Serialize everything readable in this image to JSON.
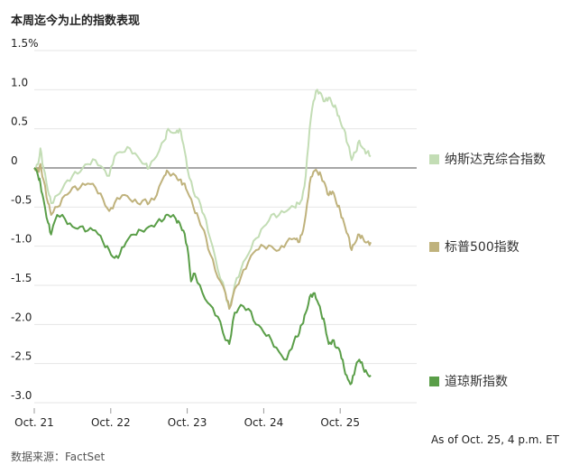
{
  "title": "本周迄今为止的指数表现",
  "source": "数据来源：FactSet",
  "note": "As of Oct. 25, 4 p.m. ET",
  "chart_data": {
    "type": "line",
    "x": [
      "Oct. 21",
      "Oct. 22",
      "Oct. 23",
      "Oct. 24",
      "Oct. 25"
    ],
    "x_ticks": [
      "Oct. 21",
      "Oct. 22",
      "Oct. 23",
      "Oct. 24",
      "Oct. 25"
    ],
    "y_ticks": [
      "1.5%",
      "1.0",
      "0.5",
      "0",
      "-0.5",
      "-1.0",
      "-1.5",
      "-2.0",
      "-2.5",
      "-3.0"
    ],
    "ylim": [
      -3.0,
      1.5
    ],
    "xlim": [
      0,
      5
    ],
    "grid": true,
    "legend": "right",
    "series": [
      {
        "name": "纳斯达克综合指数",
        "color": "#c3ddb5",
        "points": [
          [
            0.0,
            0.0
          ],
          [
            0.05,
            0.05
          ],
          [
            0.08,
            0.25
          ],
          [
            0.12,
            0.0
          ],
          [
            0.18,
            -0.3
          ],
          [
            0.22,
            -0.45
          ],
          [
            0.3,
            -0.35
          ],
          [
            0.4,
            -0.2
          ],
          [
            0.5,
            -0.1
          ],
          [
            0.6,
            -0.05
          ],
          [
            0.7,
            0.05
          ],
          [
            0.8,
            0.1
          ],
          [
            0.9,
            0.0
          ],
          [
            0.98,
            -0.1
          ],
          [
            1.05,
            0.15
          ],
          [
            1.15,
            0.2
          ],
          [
            1.25,
            0.25
          ],
          [
            1.35,
            0.15
          ],
          [
            1.45,
            0.05
          ],
          [
            1.5,
            0.0
          ],
          [
            1.6,
            0.15
          ],
          [
            1.7,
            0.35
          ],
          [
            1.75,
            0.5
          ],
          [
            1.85,
            0.45
          ],
          [
            1.9,
            0.5
          ],
          [
            1.95,
            0.3
          ],
          [
            2.0,
            0.0
          ],
          [
            2.08,
            -0.3
          ],
          [
            2.15,
            -0.4
          ],
          [
            2.22,
            -0.6
          ],
          [
            2.3,
            -0.9
          ],
          [
            2.4,
            -1.3
          ],
          [
            2.5,
            -1.6
          ],
          [
            2.55,
            -1.8
          ],
          [
            2.62,
            -1.5
          ],
          [
            2.7,
            -1.3
          ],
          [
            2.8,
            -1.1
          ],
          [
            2.9,
            -0.9
          ],
          [
            3.0,
            -0.75
          ],
          [
            3.1,
            -0.6
          ],
          [
            3.2,
            -0.6
          ],
          [
            3.3,
            -0.55
          ],
          [
            3.4,
            -0.5
          ],
          [
            3.45,
            -0.45
          ],
          [
            3.5,
            -0.4
          ],
          [
            3.55,
            -0.1
          ],
          [
            3.6,
            0.5
          ],
          [
            3.65,
            0.85
          ],
          [
            3.7,
            1.0
          ],
          [
            3.75,
            0.95
          ],
          [
            3.8,
            0.85
          ],
          [
            3.85,
            0.9
          ],
          [
            3.9,
            0.8
          ],
          [
            3.95,
            0.75
          ],
          [
            4.0,
            0.6
          ],
          [
            4.05,
            0.5
          ],
          [
            4.1,
            0.3
          ],
          [
            4.15,
            0.1
          ],
          [
            4.2,
            0.2
          ],
          [
            4.25,
            0.35
          ],
          [
            4.3,
            0.25
          ],
          [
            4.35,
            0.2
          ],
          [
            4.4,
            0.15
          ]
        ]
      },
      {
        "name": "标普500指数",
        "color": "#bfb27c",
        "points": [
          [
            0.0,
            0.0
          ],
          [
            0.05,
            -0.05
          ],
          [
            0.08,
            0.05
          ],
          [
            0.12,
            -0.15
          ],
          [
            0.18,
            -0.45
          ],
          [
            0.22,
            -0.6
          ],
          [
            0.3,
            -0.5
          ],
          [
            0.4,
            -0.35
          ],
          [
            0.5,
            -0.25
          ],
          [
            0.6,
            -0.25
          ],
          [
            0.7,
            -0.2
          ],
          [
            0.8,
            -0.25
          ],
          [
            0.9,
            -0.4
          ],
          [
            0.98,
            -0.55
          ],
          [
            1.05,
            -0.45
          ],
          [
            1.15,
            -0.35
          ],
          [
            1.25,
            -0.4
          ],
          [
            1.35,
            -0.45
          ],
          [
            1.45,
            -0.4
          ],
          [
            1.5,
            -0.45
          ],
          [
            1.6,
            -0.35
          ],
          [
            1.7,
            -0.1
          ],
          [
            1.75,
            -0.05
          ],
          [
            1.85,
            -0.1
          ],
          [
            1.9,
            -0.15
          ],
          [
            1.95,
            -0.2
          ],
          [
            2.0,
            -0.3
          ],
          [
            2.08,
            -0.5
          ],
          [
            2.15,
            -0.65
          ],
          [
            2.22,
            -0.8
          ],
          [
            2.3,
            -1.1
          ],
          [
            2.4,
            -1.4
          ],
          [
            2.5,
            -1.6
          ],
          [
            2.55,
            -1.8
          ],
          [
            2.62,
            -1.55
          ],
          [
            2.7,
            -1.4
          ],
          [
            2.8,
            -1.2
          ],
          [
            2.9,
            -1.05
          ],
          [
            3.0,
            -1.0
          ],
          [
            3.1,
            -1.0
          ],
          [
            3.2,
            -1.05
          ],
          [
            3.3,
            -0.95
          ],
          [
            3.4,
            -0.9
          ],
          [
            3.45,
            -0.95
          ],
          [
            3.5,
            -0.85
          ],
          [
            3.55,
            -0.6
          ],
          [
            3.6,
            -0.2
          ],
          [
            3.65,
            -0.05
          ],
          [
            3.7,
            -0.05
          ],
          [
            3.75,
            -0.1
          ],
          [
            3.8,
            -0.2
          ],
          [
            3.85,
            -0.35
          ],
          [
            3.9,
            -0.3
          ],
          [
            3.95,
            -0.45
          ],
          [
            4.0,
            -0.55
          ],
          [
            4.05,
            -0.7
          ],
          [
            4.1,
            -0.85
          ],
          [
            4.15,
            -1.05
          ],
          [
            4.2,
            -0.95
          ],
          [
            4.25,
            -0.85
          ],
          [
            4.3,
            -0.9
          ],
          [
            4.35,
            -0.95
          ],
          [
            4.4,
            -0.95
          ]
        ]
      },
      {
        "name": "道琼斯指数",
        "color": "#5a9e48",
        "points": [
          [
            0.0,
            0.0
          ],
          [
            0.05,
            -0.1
          ],
          [
            0.08,
            -0.2
          ],
          [
            0.12,
            -0.4
          ],
          [
            0.18,
            -0.7
          ],
          [
            0.22,
            -0.85
          ],
          [
            0.3,
            -0.6
          ],
          [
            0.4,
            -0.65
          ],
          [
            0.5,
            -0.75
          ],
          [
            0.6,
            -0.75
          ],
          [
            0.7,
            -0.8
          ],
          [
            0.8,
            -0.8
          ],
          [
            0.9,
            -0.95
          ],
          [
            0.98,
            -1.05
          ],
          [
            1.05,
            -1.15
          ],
          [
            1.12,
            -1.1
          ],
          [
            1.2,
            -0.95
          ],
          [
            1.3,
            -0.85
          ],
          [
            1.4,
            -0.8
          ],
          [
            1.5,
            -0.75
          ],
          [
            1.6,
            -0.7
          ],
          [
            1.7,
            -0.65
          ],
          [
            1.75,
            -0.6
          ],
          [
            1.85,
            -0.65
          ],
          [
            1.9,
            -0.7
          ],
          [
            1.95,
            -0.8
          ],
          [
            2.0,
            -1.0
          ],
          [
            2.05,
            -1.45
          ],
          [
            2.1,
            -1.35
          ],
          [
            2.2,
            -1.6
          ],
          [
            2.3,
            -1.75
          ],
          [
            2.4,
            -1.9
          ],
          [
            2.5,
            -2.2
          ],
          [
            2.55,
            -2.25
          ],
          [
            2.62,
            -1.85
          ],
          [
            2.7,
            -1.75
          ],
          [
            2.8,
            -1.8
          ],
          [
            2.9,
            -2.0
          ],
          [
            3.0,
            -2.1
          ],
          [
            3.1,
            -2.2
          ],
          [
            3.2,
            -2.35
          ],
          [
            3.3,
            -2.45
          ],
          [
            3.4,
            -2.2
          ],
          [
            3.45,
            -2.15
          ],
          [
            3.5,
            -2.0
          ],
          [
            3.55,
            -1.85
          ],
          [
            3.6,
            -1.65
          ],
          [
            3.65,
            -1.6
          ],
          [
            3.7,
            -1.7
          ],
          [
            3.75,
            -1.85
          ],
          [
            3.8,
            -2.0
          ],
          [
            3.85,
            -2.25
          ],
          [
            3.9,
            -2.2
          ],
          [
            3.95,
            -2.3
          ],
          [
            4.0,
            -2.35
          ],
          [
            4.05,
            -2.55
          ],
          [
            4.1,
            -2.7
          ],
          [
            4.15,
            -2.75
          ],
          [
            4.2,
            -2.55
          ],
          [
            4.25,
            -2.45
          ],
          [
            4.3,
            -2.55
          ],
          [
            4.35,
            -2.62
          ],
          [
            4.4,
            -2.65
          ]
        ]
      }
    ]
  }
}
